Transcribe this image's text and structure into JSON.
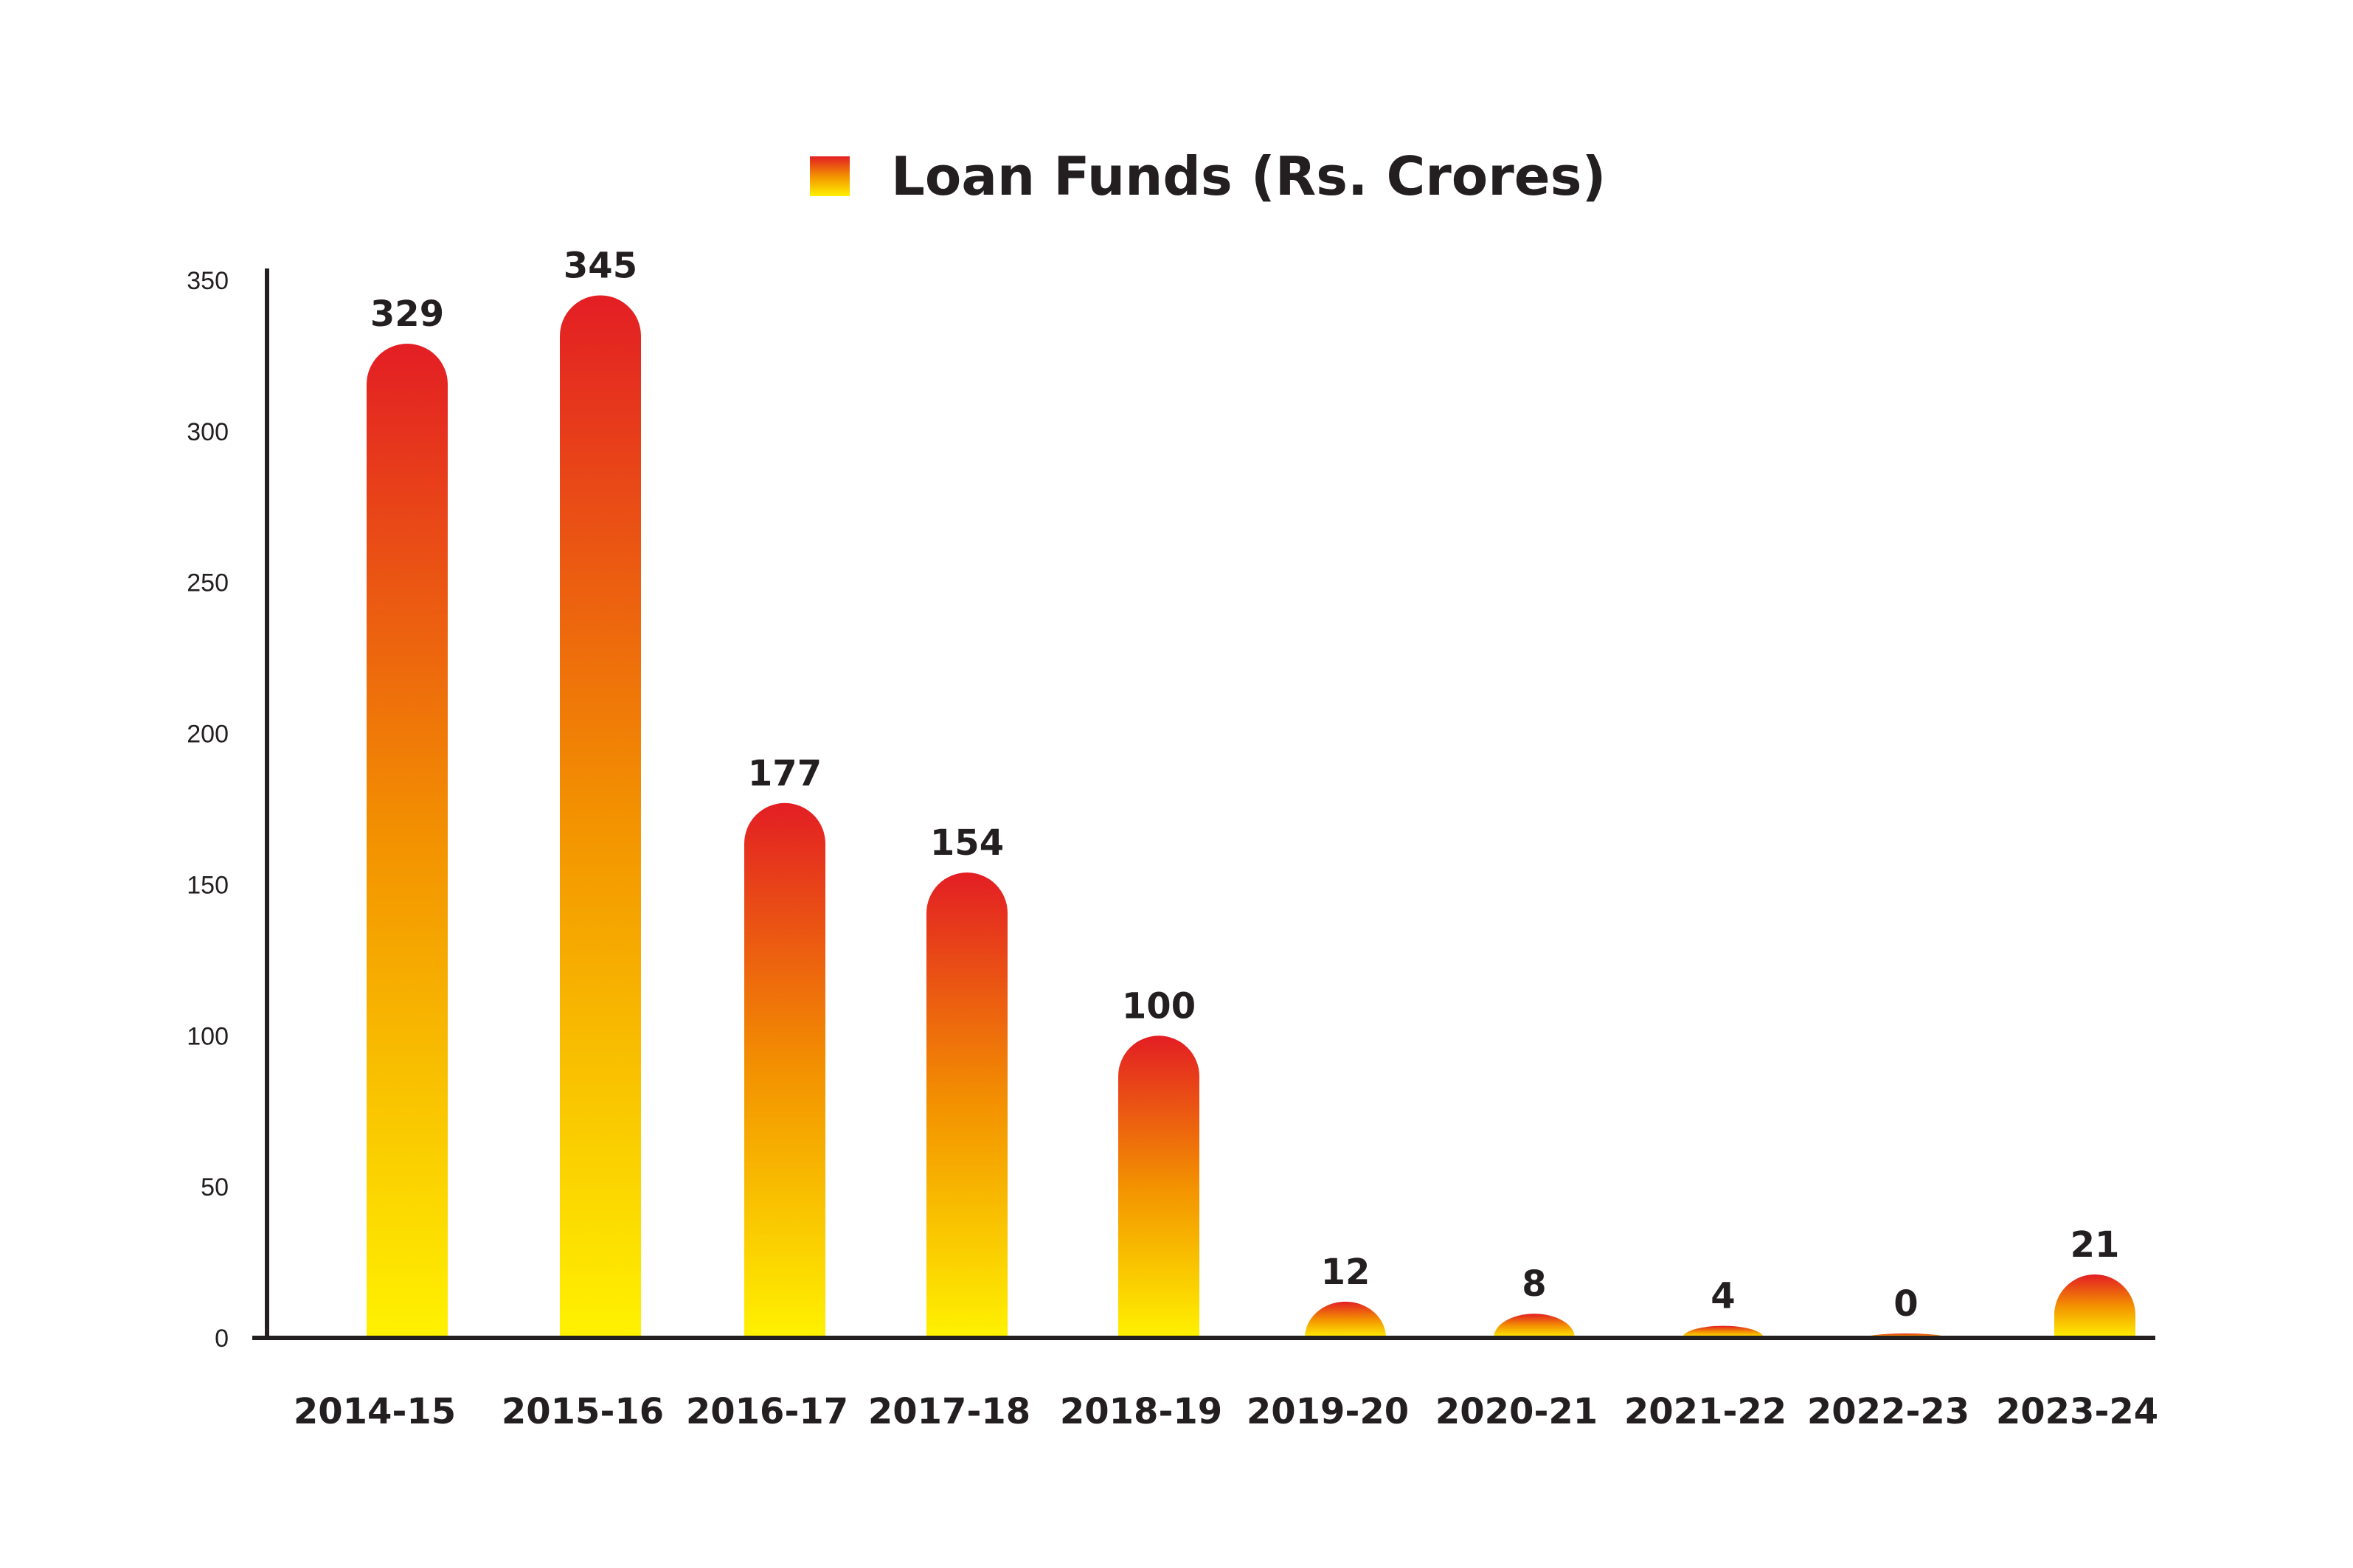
{
  "chart_data": {
    "type": "bar",
    "categories": [
      "2014-15",
      "2015-16",
      "2016-17",
      "2017-18",
      "2018-19",
      "2019-20",
      "2020-21",
      "2021-22",
      "2022-23",
      "2023-24"
    ],
    "series": [
      {
        "name": "Loan Funds (Rs. Crores)",
        "values": [
          329,
          345,
          177,
          154,
          100,
          12,
          8,
          4,
          0,
          21
        ]
      }
    ],
    "data_labels": [
      "329",
      "345",
      "177",
      "154",
      "100",
      "12",
      "8",
      "4",
      "0",
      "21"
    ],
    "y_ticks": [
      "0",
      "50",
      "100",
      "150",
      "200",
      "250",
      "300",
      "350"
    ],
    "ylim": [
      0,
      350
    ],
    "grid": false,
    "legend_position": "top-center",
    "colors": {
      "bar_top": "#e31e24",
      "bar_mid": "#f39200",
      "bar_bottom": "#fff200",
      "axis": "#231f20",
      "text": "#231f20"
    }
  }
}
